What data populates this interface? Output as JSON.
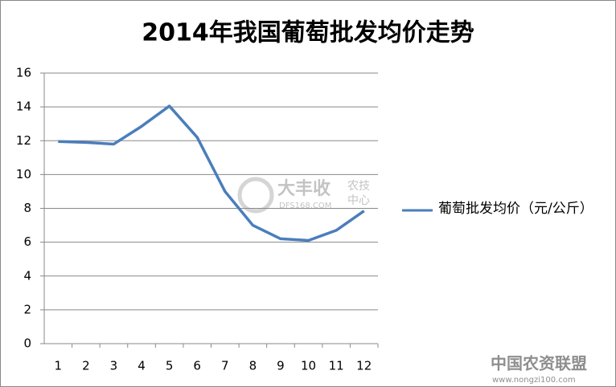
{
  "chart_data": {
    "type": "line",
    "title": "2014年我国葡萄批发均价走势",
    "categories": [
      "1",
      "2",
      "3",
      "4",
      "5",
      "6",
      "7",
      "8",
      "9",
      "10",
      "11",
      "12"
    ],
    "series": [
      {
        "name": "葡萄批发均价（元/公斤）",
        "color": "#4a7ebb",
        "values": [
          11.95,
          11.9,
          11.8,
          12.85,
          14.05,
          12.2,
          9.0,
          7.0,
          6.2,
          6.1,
          6.7,
          7.85
        ]
      }
    ],
    "ylim": [
      0,
      16
    ],
    "yticks": [
      0,
      2,
      4,
      6,
      8,
      10,
      12,
      14,
      16
    ],
    "grid": true,
    "legend": "right",
    "watermarks": [
      "大丰收",
      "农技",
      "中心",
      "DFS168.COM",
      "中国农资联盟",
      "www.nongzi100.com"
    ]
  }
}
